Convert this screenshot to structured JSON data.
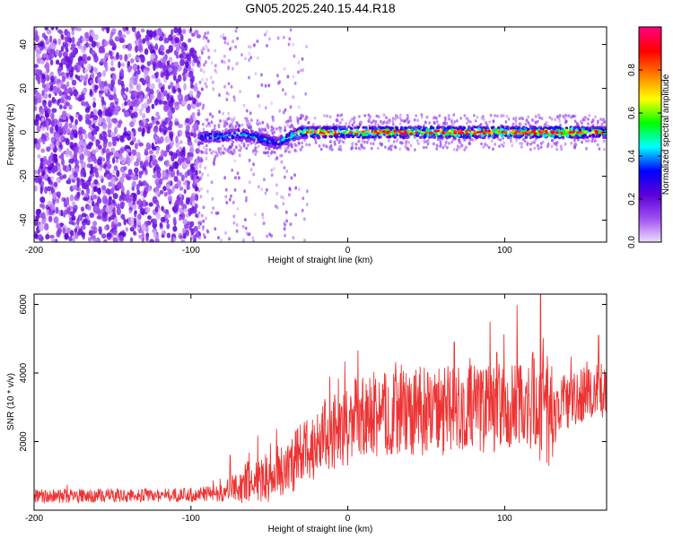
{
  "figure": {
    "title": "GN05.2025.240.15.44.R18"
  },
  "chart_data": [
    {
      "type": "heatmap",
      "title": "GN05.2025.240.15.44.R18",
      "xlabel": "Height of straight line (km)",
      "ylabel": "Frequency (Hz)",
      "xlim": [
        -200,
        165
      ],
      "ylim": [
        -50,
        48
      ],
      "x_ticks": [
        -200,
        -100,
        0,
        100
      ],
      "y_ticks": [
        -40,
        -20,
        0,
        20,
        40
      ],
      "grid": false,
      "colorbar": {
        "label": "Normalized spectral amplitude",
        "range": [
          0,
          1
        ],
        "ticks": [
          0.0,
          0.2,
          0.4,
          0.6,
          0.8
        ],
        "colormap": [
          "#f0e0ff",
          "#a050f0",
          "#5a00d8",
          "#0000ff",
          "#00ffff",
          "#00ff00",
          "#ffff00",
          "#ff8000",
          "#ff0000",
          "#ff0080"
        ]
      },
      "ridge": {
        "x": [
          -95,
          -90,
          -80,
          -70,
          -60,
          -50,
          -45,
          -40,
          -30,
          -20,
          0,
          20,
          40,
          60,
          80,
          100,
          120,
          140,
          165
        ],
        "frequency": [
          -3,
          -2,
          -2,
          -1,
          -2,
          -4,
          -5,
          -3,
          0,
          0,
          0,
          0,
          0,
          0,
          0,
          0,
          0,
          0,
          0
        ],
        "amplitude": [
          0.35,
          0.45,
          0.5,
          0.45,
          0.5,
          0.45,
          0.4,
          0.5,
          0.7,
          0.8,
          0.75,
          0.8,
          0.75,
          0.8,
          0.85,
          0.8,
          0.85,
          0.9,
          0.6
        ]
      },
      "noise_region": {
        "x_range": [
          -200,
          -95
        ],
        "dense_amplitude": 0.2,
        "sparse_x_range": [
          -95,
          -25
        ],
        "sparse_amplitude": 0.08
      }
    },
    {
      "type": "line",
      "xlabel": "Height of straight line (km)",
      "ylabel": "SNR (10 * v/v)",
      "xlim": [
        -200,
        165
      ],
      "ylim": [
        0,
        6300
      ],
      "x_ticks": [
        -200,
        -100,
        0,
        100
      ],
      "y_ticks": [
        2000,
        4000,
        6000
      ],
      "grid": false,
      "series": [
        {
          "color": "#ee3333",
          "x": [
            -200,
            -180,
            -160,
            -140,
            -120,
            -100,
            -90,
            -80,
            -72,
            -65,
            -55,
            -45,
            -35,
            -25,
            -15,
            -5,
            5,
            15,
            25,
            35,
            45,
            55,
            65,
            75,
            85,
            95,
            105,
            115,
            125,
            128,
            135,
            145,
            155,
            165
          ],
          "center": [
            400,
            410,
            420,
            430,
            440,
            450,
            480,
            500,
            650,
            800,
            900,
            1100,
            1400,
            1800,
            2200,
            2450,
            2600,
            2700,
            2800,
            2850,
            2900,
            2900,
            2900,
            2950,
            2950,
            3000,
            3050,
            3000,
            3000,
            2900,
            3200,
            3300,
            3450,
            3600
          ],
          "spread": [
            200,
            200,
            200,
            200,
            200,
            200,
            220,
            250,
            450,
            600,
            700,
            800,
            900,
            1000,
            1100,
            1200,
            1250,
            1250,
            1250,
            1250,
            1300,
            1300,
            1300,
            1300,
            1300,
            1300,
            1350,
            1400,
            1600,
            1800,
            900,
            900,
            900,
            900
          ],
          "peaks": [
            {
              "x": 123,
              "y": 6300
            },
            {
              "x": 68,
              "y": 4900
            },
            {
              "x": 118,
              "y": 4600
            },
            {
              "x": 160,
              "y": 5100
            },
            {
              "x": 95,
              "y": 4600
            },
            {
              "x": -5,
              "y": 3100
            },
            {
              "x": -75,
              "y": 1600
            }
          ]
        }
      ]
    }
  ]
}
